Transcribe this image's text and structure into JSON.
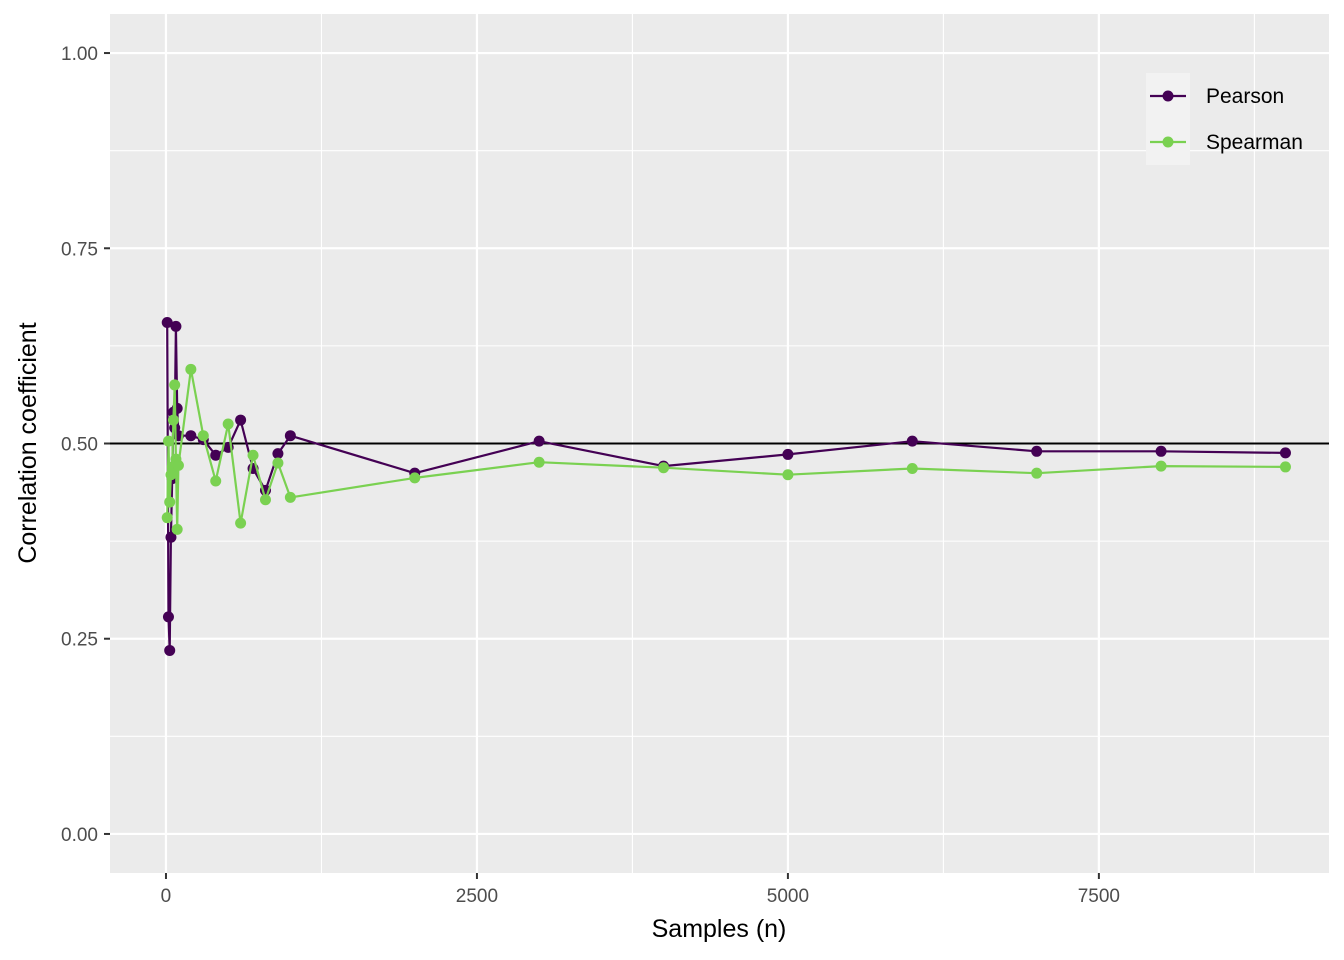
{
  "chart_data": {
    "type": "line",
    "title": "",
    "xlabel": "Samples (n)",
    "ylabel": "Correlation coefficient",
    "xlim": [
      -450,
      9350
    ],
    "ylim": [
      -0.05,
      1.05
    ],
    "x_ticks": [
      0,
      2500,
      5000,
      7500
    ],
    "x_tick_labels": [
      "0",
      "2500",
      "5000",
      "7500"
    ],
    "y_ticks": [
      0,
      0.25,
      0.5,
      0.75,
      1
    ],
    "y_tick_labels": [
      "0.00",
      "0.25",
      "0.50",
      "0.75",
      "1.00"
    ],
    "reference_line": {
      "y": 0.5,
      "color": "#000000"
    },
    "grid": true,
    "legend_position": "top-right",
    "series": [
      {
        "name": "Pearson",
        "color": "#440154",
        "points": [
          [
            10,
            0.655
          ],
          [
            20,
            0.278
          ],
          [
            30,
            0.235
          ],
          [
            40,
            0.38
          ],
          [
            50,
            0.455
          ],
          [
            60,
            0.54
          ],
          [
            70,
            0.52
          ],
          [
            80,
            0.65
          ],
          [
            90,
            0.545
          ],
          [
            100,
            0.51
          ],
          [
            200,
            0.51
          ],
          [
            300,
            0.505
          ],
          [
            400,
            0.485
          ],
          [
            500,
            0.495
          ],
          [
            600,
            0.53
          ],
          [
            700,
            0.468
          ],
          [
            800,
            0.44
          ],
          [
            900,
            0.487
          ],
          [
            1000,
            0.51
          ],
          [
            2000,
            0.462
          ],
          [
            3000,
            0.503
          ],
          [
            4000,
            0.471
          ],
          [
            5000,
            0.486
          ],
          [
            6000,
            0.503
          ],
          [
            7000,
            0.49
          ],
          [
            8000,
            0.49
          ],
          [
            9000,
            0.488
          ]
        ]
      },
      {
        "name": "Spearman",
        "color": "#7AD151",
        "points": [
          [
            10,
            0.405
          ],
          [
            20,
            0.503
          ],
          [
            30,
            0.425
          ],
          [
            40,
            0.46
          ],
          [
            50,
            0.47
          ],
          [
            60,
            0.53
          ],
          [
            70,
            0.575
          ],
          [
            80,
            0.48
          ],
          [
            90,
            0.39
          ],
          [
            100,
            0.472
          ],
          [
            200,
            0.595
          ],
          [
            300,
            0.51
          ],
          [
            400,
            0.452
          ],
          [
            500,
            0.525
          ],
          [
            600,
            0.398
          ],
          [
            700,
            0.485
          ],
          [
            800,
            0.428
          ],
          [
            900,
            0.475
          ],
          [
            1000,
            0.431
          ],
          [
            2000,
            0.456
          ],
          [
            3000,
            0.476
          ],
          [
            4000,
            0.469
          ],
          [
            5000,
            0.46
          ],
          [
            6000,
            0.468
          ],
          [
            7000,
            0.462
          ],
          [
            8000,
            0.471
          ],
          [
            9000,
            0.47
          ]
        ]
      }
    ]
  }
}
